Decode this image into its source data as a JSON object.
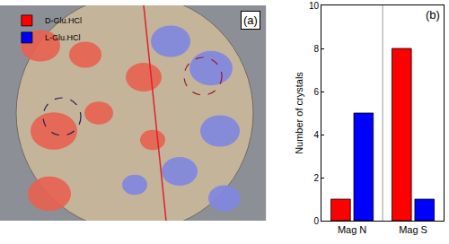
{
  "chart_data": {
    "type": "bar",
    "categories": [
      "Mag N",
      "Mag S"
    ],
    "series": [
      {
        "name": "D-Glu.HCl",
        "color": "#ff0000",
        "values": [
          1,
          8
        ]
      },
      {
        "name": "L-Glu.HCl",
        "color": "#0000ff",
        "values": [
          5,
          1
        ]
      }
    ],
    "y_label": "Number of crystals",
    "ylim": [
      0,
      10
    ],
    "yticks": [
      0,
      2,
      4,
      6,
      8,
      10
    ],
    "legend": "upper left",
    "grid": false,
    "annotations": [
      "(b)"
    ]
  },
  "photo": {
    "label": "(a)"
  }
}
